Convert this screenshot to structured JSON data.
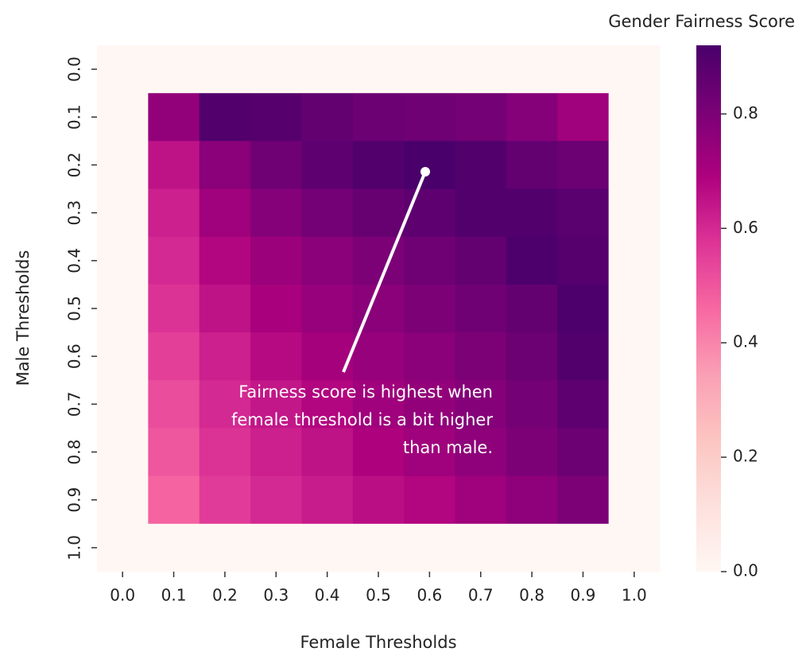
{
  "chart_data": {
    "type": "heatmap",
    "x_label": "Female Thresholds",
    "y_label": "Male Thresholds",
    "x_categories": [
      "0.0",
      "0.1",
      "0.2",
      "0.3",
      "0.4",
      "0.5",
      "0.6",
      "0.7",
      "0.8",
      "0.9",
      "1.0"
    ],
    "y_categories": [
      "0.0",
      "0.1",
      "0.2",
      "0.3",
      "0.4",
      "0.5",
      "0.6",
      "0.7",
      "0.8",
      "0.9",
      "1.0"
    ],
    "values": [
      [
        0,
        0,
        0,
        0,
        0,
        0,
        0,
        0,
        0,
        0,
        0
      ],
      [
        0,
        0.75,
        0.9,
        0.89,
        0.86,
        0.84,
        0.83,
        0.82,
        0.78,
        0.72,
        0
      ],
      [
        0,
        0.65,
        0.77,
        0.83,
        0.87,
        0.9,
        0.92,
        0.9,
        0.86,
        0.84,
        0
      ],
      [
        0,
        0.62,
        0.72,
        0.78,
        0.82,
        0.85,
        0.87,
        0.9,
        0.9,
        0.88,
        0
      ],
      [
        0,
        0.6,
        0.68,
        0.73,
        0.77,
        0.8,
        0.83,
        0.86,
        0.91,
        0.89,
        0
      ],
      [
        0,
        0.58,
        0.65,
        0.7,
        0.74,
        0.77,
        0.8,
        0.83,
        0.86,
        0.91,
        0
      ],
      [
        0,
        0.55,
        0.62,
        0.67,
        0.71,
        0.74,
        0.77,
        0.8,
        0.84,
        0.9,
        0
      ],
      [
        0,
        0.52,
        0.6,
        0.64,
        0.68,
        0.72,
        0.75,
        0.78,
        0.82,
        0.87,
        0
      ],
      [
        0,
        0.5,
        0.58,
        0.62,
        0.65,
        0.69,
        0.72,
        0.76,
        0.8,
        0.84,
        0
      ],
      [
        0,
        0.47,
        0.56,
        0.6,
        0.63,
        0.66,
        0.68,
        0.72,
        0.76,
        0.8,
        0
      ],
      [
        0,
        0,
        0,
        0,
        0,
        0,
        0,
        0,
        0,
        0,
        0
      ]
    ],
    "colorbar_title": "Gender Fairness Score",
    "clim": [
      0,
      0.92
    ],
    "colorbar_ticks": [
      {
        "value": 0,
        "label": "0.0"
      },
      0.2,
      0.4,
      0.6,
      0.8
    ],
    "colormap": [
      "#fff7f3",
      "#fde0dd",
      "#fcc5c0",
      "#fa9fb5",
      "#f768a1",
      "#dd3497",
      "#ae017e",
      "#7a0177",
      "#49006a"
    ],
    "annotation": [
      "Fairness score is highest when",
      "female threshold is a bit higher",
      "than male."
    ]
  }
}
